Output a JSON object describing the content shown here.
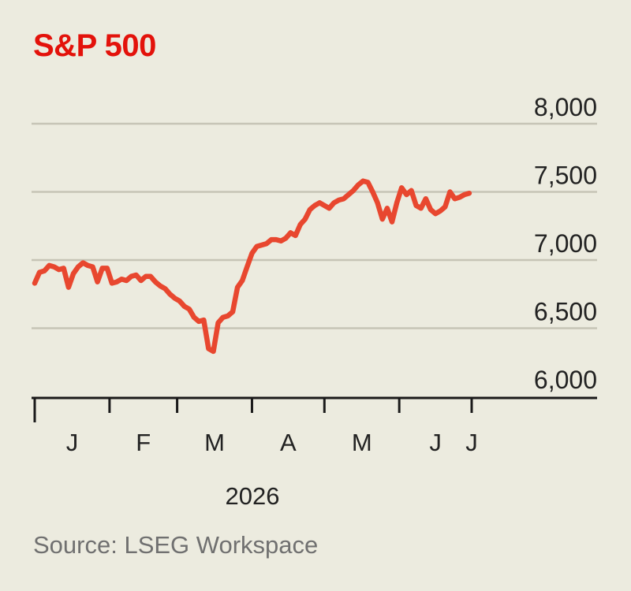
{
  "chart_data": {
    "type": "line",
    "title": "S&P 500",
    "source": "Source: LSEG Workspace",
    "year_label": "2026",
    "y_ticks": [
      8000,
      7500,
      7000,
      6500,
      6000
    ],
    "y_tick_labels": [
      "8,000",
      "7,500",
      "7,000",
      "6,500",
      "6,000"
    ],
    "ylim": [
      6000,
      8000
    ],
    "x_month_labels": [
      "J",
      "F",
      "M",
      "A",
      "M",
      "J",
      "J"
    ],
    "xlim": [
      "2026-01-01",
      "2026-07-01"
    ],
    "grid": true,
    "line_color": "#e8472f",
    "title_color": "#e3120b",
    "series": [
      {
        "x": [
          "2026-01-01",
          "2026-01-03",
          "2026-01-05",
          "2026-01-07",
          "2026-01-09",
          "2026-01-11",
          "2026-01-13",
          "2026-01-15",
          "2026-01-17",
          "2026-01-19",
          "2026-01-21",
          "2026-01-23",
          "2026-01-25",
          "2026-01-27",
          "2026-01-29",
          "2026-01-31",
          "2026-02-02",
          "2026-02-04",
          "2026-02-06",
          "2026-02-08",
          "2026-02-10",
          "2026-02-12",
          "2026-02-14",
          "2026-02-16",
          "2026-02-18",
          "2026-02-20",
          "2026-02-22",
          "2026-02-24",
          "2026-02-26",
          "2026-02-28",
          "2026-03-02",
          "2026-03-04",
          "2026-03-06",
          "2026-03-08",
          "2026-03-10",
          "2026-03-12",
          "2026-03-14",
          "2026-03-16",
          "2026-03-18",
          "2026-03-20",
          "2026-03-22",
          "2026-03-24",
          "2026-03-26",
          "2026-03-28",
          "2026-03-30",
          "2026-04-01",
          "2026-04-03",
          "2026-04-05",
          "2026-04-07",
          "2026-04-09",
          "2026-04-11",
          "2026-04-13",
          "2026-04-15",
          "2026-04-17",
          "2026-04-19",
          "2026-04-21",
          "2026-04-23",
          "2026-04-25",
          "2026-04-27",
          "2026-04-29",
          "2026-05-01",
          "2026-05-03",
          "2026-05-05",
          "2026-05-07",
          "2026-05-09",
          "2026-05-11",
          "2026-05-13",
          "2026-05-15",
          "2026-05-17",
          "2026-05-19",
          "2026-05-21",
          "2026-05-23",
          "2026-05-25",
          "2026-05-27",
          "2026-05-29",
          "2026-05-31",
          "2026-06-02",
          "2026-06-04",
          "2026-06-06",
          "2026-06-08",
          "2026-06-10",
          "2026-06-12",
          "2026-06-14",
          "2026-06-16",
          "2026-06-18",
          "2026-06-20",
          "2026-06-22",
          "2026-06-24",
          "2026-06-26",
          "2026-06-28",
          "2026-06-30"
        ],
        "y": [
          6830,
          6910,
          6920,
          6960,
          6950,
          6930,
          6940,
          6800,
          6900,
          6950,
          6980,
          6960,
          6950,
          6840,
          6940,
          6940,
          6830,
          6840,
          6860,
          6850,
          6880,
          6890,
          6850,
          6880,
          6880,
          6840,
          6810,
          6790,
          6750,
          6720,
          6700,
          6660,
          6640,
          6580,
          6550,
          6560,
          6350,
          6330,
          6540,
          6580,
          6590,
          6620,
          6800,
          6850,
          6950,
          7050,
          7100,
          7110,
          7120,
          7150,
          7150,
          7140,
          7160,
          7200,
          7180,
          7260,
          7300,
          7370,
          7400,
          7420,
          7400,
          7380,
          7420,
          7440,
          7450,
          7480,
          7510,
          7550,
          7580,
          7570,
          7500,
          7420,
          7300,
          7380,
          7280,
          7420,
          7530,
          7480,
          7510,
          7400,
          7380,
          7450,
          7370,
          7340,
          7360,
          7390,
          7500,
          7450,
          7460,
          7480,
          7490
        ]
      }
    ]
  }
}
